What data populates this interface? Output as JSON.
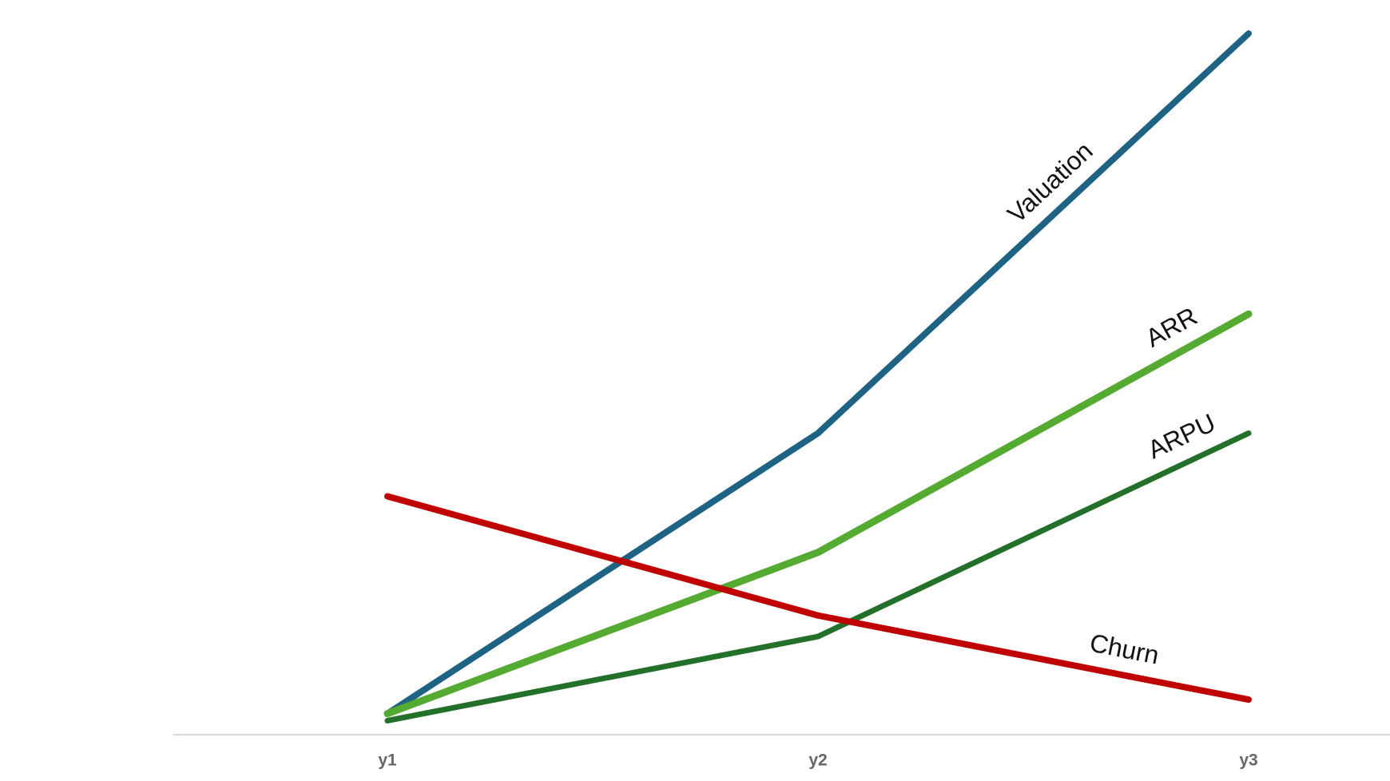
{
  "chart_data": {
    "type": "line",
    "categories": [
      "y1",
      "y2",
      "y3"
    ],
    "series": [
      {
        "name": "Valuation",
        "color": "#1f6384",
        "values": [
          3,
          43,
          100
        ]
      },
      {
        "name": "ARR",
        "color": "#55ab32",
        "values": [
          3,
          26,
          60
        ]
      },
      {
        "name": "ARPU",
        "color": "#23702a",
        "values": [
          2,
          14,
          43
        ]
      },
      {
        "name": "Churn",
        "color": "#c00000",
        "values": [
          34,
          17,
          5
        ]
      }
    ],
    "ylim": [
      0,
      100
    ]
  }
}
